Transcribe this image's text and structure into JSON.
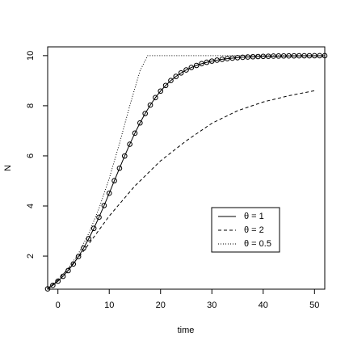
{
  "chart_data": {
    "type": "line",
    "x_label": "time",
    "y_label": "N",
    "xlim": [
      -2,
      52
    ],
    "ylim": [
      0.68,
      10.35
    ],
    "xticks": [
      0,
      10,
      20,
      30,
      40,
      50
    ],
    "yticks": [
      2,
      4,
      6,
      8,
      10
    ],
    "legend_position": "lower-right",
    "series": [
      {
        "name": "θ = 1",
        "color": "#000000",
        "linestyle": "solid",
        "marker": "circle",
        "x": [
          -2,
          -1,
          0,
          1,
          2,
          3,
          4,
          5,
          6,
          7,
          8,
          9,
          10,
          11,
          12,
          13,
          14,
          15,
          16,
          17,
          18,
          19,
          20,
          21,
          22,
          23,
          24,
          25,
          26,
          27,
          28,
          29,
          30,
          31,
          32,
          33,
          34,
          35,
          36,
          37,
          38,
          39,
          40,
          41,
          42,
          43,
          44,
          45,
          46,
          47,
          48,
          49,
          50,
          51,
          52
        ],
        "values": [
          0.693,
          0.834,
          1.0,
          1.195,
          1.422,
          1.684,
          1.983,
          2.32,
          2.695,
          3.106,
          3.55,
          4.019,
          4.509,
          5.008,
          5.506,
          5.994,
          6.464,
          6.906,
          7.315,
          7.69,
          8.026,
          8.325,
          8.585,
          8.811,
          9.005,
          9.17,
          9.31,
          9.428,
          9.527,
          9.609,
          9.678,
          9.734,
          9.782,
          9.82,
          9.853,
          9.88,
          9.9,
          9.918,
          9.933,
          9.945,
          9.955,
          9.963,
          9.97,
          9.975,
          9.98,
          9.984,
          9.987,
          9.989,
          9.991,
          9.993,
          9.994,
          9.995,
          9.996,
          9.997,
          9.997
        ]
      },
      {
        "name": "θ = 2",
        "color": "#000000",
        "linestyle": "dashed",
        "x": [
          -2,
          0,
          2.5,
          5,
          7.5,
          10,
          12.5,
          15,
          17.5,
          20,
          25,
          30,
          35,
          40,
          45,
          50
        ],
        "values": [
          0.7,
          1.05,
          1.6,
          2.2,
          2.9,
          3.6,
          4.2,
          4.8,
          5.3,
          5.8,
          6.6,
          7.3,
          7.8,
          8.15,
          8.4,
          8.6
        ]
      },
      {
        "name": "θ = 0.5",
        "color": "#000000",
        "linestyle": "dotted",
        "x": [
          -2,
          0,
          2,
          4,
          6,
          8,
          10,
          12,
          14,
          16,
          17.5,
          52
        ],
        "values": [
          0.7,
          1.05,
          1.5,
          2.1,
          2.9,
          3.9,
          5.1,
          6.5,
          8.0,
          9.4,
          10,
          10
        ]
      }
    ]
  }
}
